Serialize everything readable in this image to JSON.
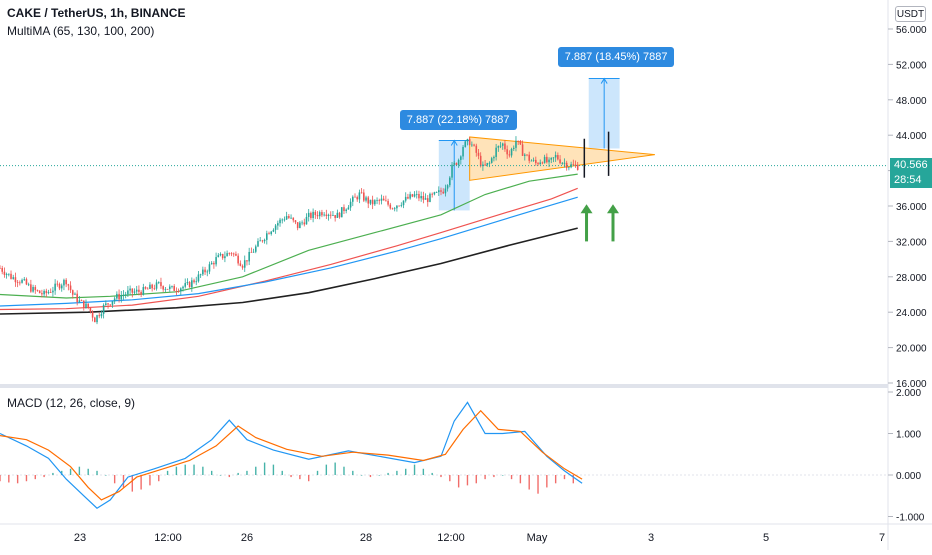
{
  "header": {
    "title": "CAKE / TetherUS, 1h, BINANCE",
    "indicator": "MultiMA (65, 130, 100, 200)",
    "currency_button": "USDT"
  },
  "last_price": {
    "value": "40.566",
    "countdown": "28:54",
    "color": "#26a69a"
  },
  "annotations": {
    "measure_1": "7.887 (22.18%) 7887",
    "measure_2": "7.887 (18.45%) 7887"
  },
  "macd": {
    "label": "MACD (12, 26, close, 9)"
  },
  "colors": {
    "up": "#26a69a",
    "down": "#ef5350",
    "ma65": "#4caf50",
    "ma130": "#ef5350",
    "ma100": "#2196f3",
    "ma200": "#212121",
    "macd": "#2196f3",
    "signal": "#ff6d00",
    "triangle_fill": "#ffcc80",
    "triangle_stroke": "#ff9800",
    "measure_fill": "#bbdefb",
    "arrow": "#43a047",
    "callout": "#2d8ae0"
  },
  "chart_data": [
    {
      "type": "candlestick",
      "title": "CAKE / TetherUS, 1h, BINANCE",
      "ylim": [
        16,
        56
      ],
      "y_ticks": [
        "56.000",
        "52.000",
        "48.000",
        "44.000",
        "40.000",
        "36.000",
        "32.000",
        "28.000",
        "24.000",
        "20.000",
        "16.000"
      ],
      "x_ticks": [
        "23",
        "12:00",
        "26",
        "28",
        "12:00",
        "May",
        "3",
        "5",
        "7"
      ],
      "close_path": [
        [
          0,
          29.0
        ],
        [
          5,
          28.0
        ],
        [
          10,
          27.5
        ],
        [
          15,
          26.5
        ],
        [
          20,
          26.0
        ],
        [
          25,
          26.8
        ],
        [
          30,
          27.6
        ],
        [
          33,
          26.0
        ],
        [
          36,
          25.2
        ],
        [
          40,
          24.5
        ],
        [
          43,
          23.2
        ],
        [
          47,
          24.6
        ],
        [
          52,
          25.6
        ],
        [
          58,
          26.2
        ],
        [
          65,
          26.4
        ],
        [
          72,
          27.1
        ],
        [
          78,
          26.6
        ],
        [
          85,
          27.0
        ],
        [
          92,
          28.4
        ],
        [
          98,
          30.0
        ],
        [
          105,
          30.8
        ],
        [
          110,
          29.4
        ],
        [
          115,
          31.0
        ],
        [
          122,
          33.2
        ],
        [
          126,
          34.1
        ],
        [
          130,
          34.9
        ],
        [
          135,
          33.7
        ],
        [
          140,
          34.8
        ],
        [
          147,
          35.4
        ],
        [
          153,
          34.9
        ],
        [
          158,
          36.2
        ],
        [
          163,
          37.3
        ],
        [
          168,
          36.3
        ],
        [
          173,
          36.6
        ],
        [
          178,
          35.9
        ],
        [
          183,
          36.6
        ],
        [
          188,
          37.2
        ],
        [
          193,
          36.7
        ],
        [
          198,
          37.3
        ],
        [
          201,
          37.8
        ],
        [
          203,
          38.8
        ],
        [
          205,
          40.3
        ],
        [
          208,
          41.3
        ],
        [
          210,
          42.8
        ],
        [
          213,
          43.3
        ],
        [
          216,
          42.0
        ],
        [
          219,
          40.3
        ],
        [
          222,
          40.8
        ],
        [
          225,
          42.4
        ],
        [
          228,
          43.0
        ],
        [
          231,
          41.8
        ],
        [
          234,
          43.4
        ],
        [
          237,
          42.1
        ],
        [
          240,
          41.3
        ],
        [
          243,
          40.8
        ],
        [
          246,
          41.3
        ],
        [
          249,
          40.8
        ],
        [
          252,
          41.6
        ],
        [
          255,
          41.0
        ],
        [
          258,
          40.6
        ],
        [
          262,
          40.5
        ]
      ],
      "series": [
        {
          "name": "MA 65",
          "points": [
            [
              0,
              26.0
            ],
            [
              30,
              25.6
            ],
            [
              50,
              25.8
            ],
            [
              80,
              26.3
            ],
            [
              110,
              28.0
            ],
            [
              140,
              31.0
            ],
            [
              170,
              33.0
            ],
            [
              200,
              35.0
            ],
            [
              220,
              37.3
            ],
            [
              240,
              38.8
            ],
            [
              262,
              39.6
            ]
          ]
        },
        {
          "name": "MA 130",
          "points": [
            [
              0,
              24.3
            ],
            [
              30,
              24.4
            ],
            [
              60,
              24.8
            ],
            [
              90,
              25.8
            ],
            [
              120,
              27.5
            ],
            [
              150,
              29.4
            ],
            [
              180,
              31.5
            ],
            [
              200,
              33.0
            ],
            [
              230,
              35.3
            ],
            [
              250,
              36.8
            ],
            [
              262,
              38.0
            ]
          ]
        },
        {
          "name": "MA 100",
          "points": [
            [
              0,
              24.7
            ],
            [
              30,
              25.0
            ],
            [
              60,
              25.4
            ],
            [
              90,
              26.1
            ],
            [
              120,
              27.4
            ],
            [
              150,
              29.0
            ],
            [
              180,
              30.9
            ],
            [
              200,
              32.3
            ],
            [
              230,
              34.6
            ],
            [
              250,
              36.1
            ],
            [
              262,
              37.0
            ]
          ]
        },
        {
          "name": "MA 200",
          "points": [
            [
              0,
              23.8
            ],
            [
              40,
              24.0
            ],
            [
              80,
              24.5
            ],
            [
              110,
              25.1
            ],
            [
              140,
              26.2
            ],
            [
              170,
              27.8
            ],
            [
              200,
              29.5
            ],
            [
              230,
              31.5
            ],
            [
              262,
              33.5
            ]
          ]
        }
      ],
      "patterns": {
        "triangle": [
          [
            213,
            43.8
          ],
          [
            213,
            38.9
          ],
          [
            297,
            41.8
          ]
        ],
        "measure_1": {
          "x": [
            199,
            213
          ],
          "y": [
            35.5,
            43.4
          ]
        },
        "measure_2": {
          "x": [
            267,
            281
          ],
          "y": [
            42.5,
            50.4
          ]
        },
        "markers": [
          {
            "x": 265,
            "y": [
              39.2,
              43.6
            ]
          },
          {
            "x": 276,
            "y": [
              39.4,
              44.4
            ]
          }
        ],
        "arrows": [
          {
            "x": 266,
            "y": [
              32.0,
              36.2
            ]
          },
          {
            "x": 278,
            "y": [
              32.0,
              36.2
            ]
          }
        ]
      },
      "last_value": 40.566
    },
    {
      "type": "line",
      "title": "MACD (12, 26, close, 9)",
      "ylim": [
        -1.3,
        2.2
      ],
      "y_ticks": [
        "2.000",
        "1.000",
        "0.000",
        "-1.000"
      ],
      "series": [
        {
          "name": "MACD",
          "points": [
            [
              0,
              1.0
            ],
            [
              12,
              0.7
            ],
            [
              22,
              0.4
            ],
            [
              30,
              -0.1
            ],
            [
              38,
              -0.5
            ],
            [
              44,
              -0.8
            ],
            [
              50,
              -0.6
            ],
            [
              58,
              -0.05
            ],
            [
              70,
              0.15
            ],
            [
              84,
              0.4
            ],
            [
              96,
              0.85
            ],
            [
              104,
              1.32
            ],
            [
              112,
              0.85
            ],
            [
              124,
              0.6
            ],
            [
              140,
              0.38
            ],
            [
              158,
              0.58
            ],
            [
              172,
              0.45
            ],
            [
              188,
              0.3
            ],
            [
              200,
              0.45
            ],
            [
              206,
              1.3
            ],
            [
              212,
              1.75
            ],
            [
              220,
              1.0
            ],
            [
              228,
              1.0
            ],
            [
              238,
              1.05
            ],
            [
              248,
              0.45
            ],
            [
              256,
              0.1
            ],
            [
              264,
              -0.2
            ]
          ]
        },
        {
          "name": "Signal",
          "points": [
            [
              0,
              0.95
            ],
            [
              12,
              0.85
            ],
            [
              22,
              0.6
            ],
            [
              32,
              0.2
            ],
            [
              40,
              -0.3
            ],
            [
              46,
              -0.6
            ],
            [
              54,
              -0.4
            ],
            [
              62,
              -0.05
            ],
            [
              74,
              0.15
            ],
            [
              86,
              0.35
            ],
            [
              98,
              0.7
            ],
            [
              108,
              1.18
            ],
            [
              116,
              0.9
            ],
            [
              130,
              0.62
            ],
            [
              146,
              0.45
            ],
            [
              160,
              0.55
            ],
            [
              176,
              0.48
            ],
            [
              192,
              0.35
            ],
            [
              202,
              0.5
            ],
            [
              210,
              1.1
            ],
            [
              218,
              1.55
            ],
            [
              226,
              1.1
            ],
            [
              236,
              1.05
            ],
            [
              246,
              0.55
            ],
            [
              256,
              0.15
            ],
            [
              264,
              -0.1
            ]
          ]
        }
      ],
      "histogram": [
        -0.15,
        -0.18,
        -0.2,
        -0.15,
        -0.1,
        -0.05,
        0.05,
        0.1,
        0.15,
        0.2,
        0.15,
        0.1,
        0.0,
        -0.2,
        -0.3,
        -0.4,
        -0.35,
        -0.25,
        -0.15,
        0.1,
        0.2,
        0.25,
        0.25,
        0.2,
        0.1,
        0.0,
        -0.05,
        0.05,
        0.1,
        0.2,
        0.3,
        0.25,
        0.1,
        -0.05,
        -0.1,
        -0.15,
        0.1,
        0.25,
        0.3,
        0.2,
        0.1,
        0.0,
        -0.05,
        0.0,
        0.05,
        0.1,
        0.15,
        0.25,
        0.15,
        0.05,
        -0.05,
        -0.15,
        -0.3,
        -0.25,
        -0.2,
        -0.1,
        -0.05,
        0.0,
        -0.1,
        -0.2,
        -0.35,
        -0.45,
        -0.3,
        -0.2,
        -0.1,
        -0.2
      ]
    }
  ]
}
